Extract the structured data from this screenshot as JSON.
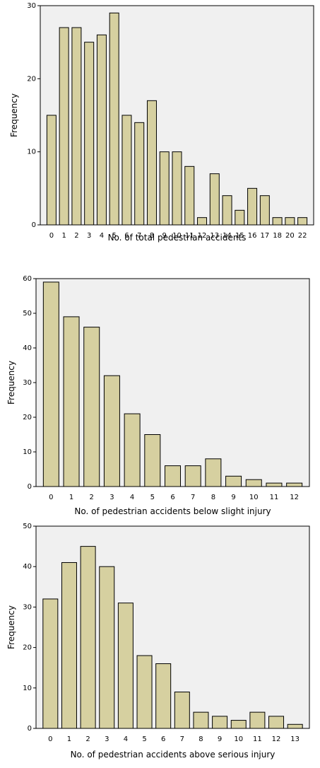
{
  "chart_data": [
    {
      "type": "bar",
      "categories": [
        "0",
        "1",
        "2",
        "3",
        "4",
        "5",
        "6",
        "7",
        "8",
        "9",
        "10",
        "11",
        "12",
        "13",
        "14",
        "15",
        "16",
        "17",
        "18",
        "20",
        "22"
      ],
      "values": [
        15,
        27,
        27,
        25,
        26,
        29,
        15,
        14,
        17,
        10,
        10,
        8,
        1,
        7,
        4,
        2,
        5,
        4,
        1,
        1,
        1
      ],
      "xlabel": "No. of total pedestrian accidents",
      "ylabel": "Frequency",
      "ylim": [
        0,
        30
      ],
      "yticks": [
        0,
        10,
        20,
        30
      ],
      "colors": {
        "bar": "#d6d0a0",
        "plot_bg": "#f0f0f0"
      }
    },
    {
      "type": "bar",
      "categories": [
        "0",
        "1",
        "2",
        "3",
        "4",
        "5",
        "6",
        "7",
        "8",
        "9",
        "10",
        "11",
        "12"
      ],
      "values": [
        59,
        49,
        46,
        32,
        21,
        15,
        6,
        6,
        8,
        3,
        2,
        1,
        1
      ],
      "xlabel": "No. of pedestrian accidents below slight injury",
      "ylabel": "Frequency",
      "ylim": [
        0,
        60
      ],
      "yticks": [
        0,
        10,
        20,
        30,
        40,
        50,
        60
      ],
      "colors": {
        "bar": "#d6d0a0",
        "plot_bg": "#f0f0f0"
      }
    },
    {
      "type": "bar",
      "categories": [
        "0",
        "1",
        "2",
        "3",
        "4",
        "5",
        "6",
        "7",
        "8",
        "9",
        "10",
        "11",
        "12",
        "13"
      ],
      "values": [
        32,
        41,
        45,
        40,
        31,
        18,
        16,
        9,
        4,
        3,
        2,
        4,
        3,
        1
      ],
      "xlabel": "No. of pedestrian accidents above serious injury",
      "ylabel": "Frequency",
      "ylim": [
        0,
        50
      ],
      "yticks": [
        0,
        10,
        20,
        30,
        40,
        50
      ],
      "colors": {
        "bar": "#d6d0a0",
        "plot_bg": "#f0f0f0"
      }
    }
  ]
}
